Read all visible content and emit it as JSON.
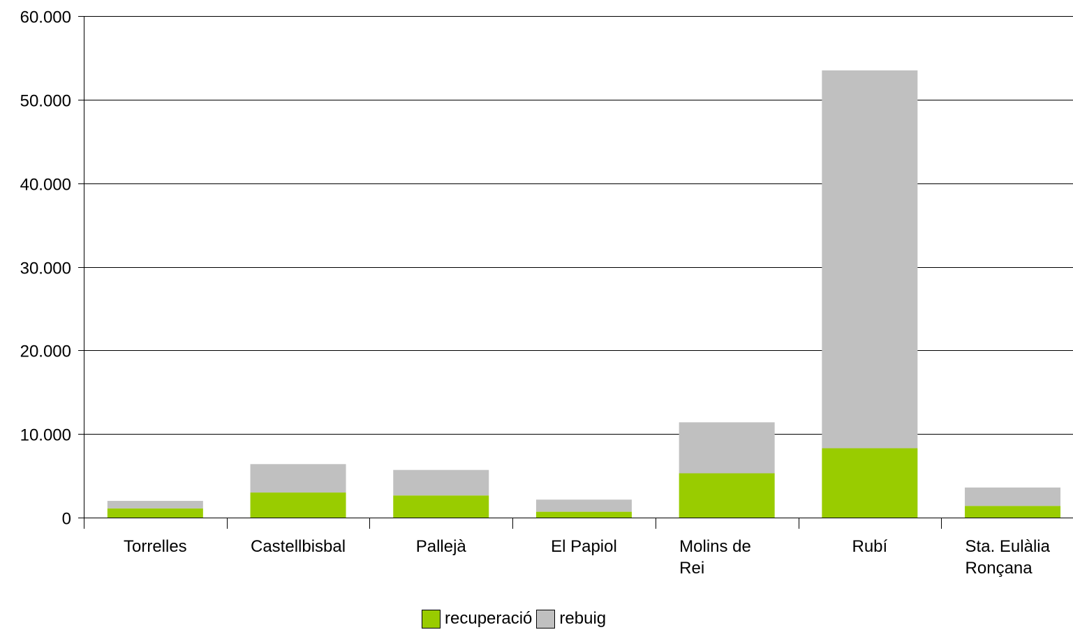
{
  "chart_data": {
    "type": "bar",
    "stacked": true,
    "title": "",
    "xlabel": "",
    "ylabel": "",
    "ylim": [
      0,
      60000
    ],
    "yticks": [
      0,
      10000,
      20000,
      30000,
      40000,
      50000,
      60000
    ],
    "ytick_labels": [
      "0",
      "10.000",
      "20.000",
      "30.000",
      "40.000",
      "50.000",
      "60.000"
    ],
    "grid": true,
    "legend_position": "bottom",
    "categories": [
      [
        "Torrelles"
      ],
      [
        "Castellbisbal"
      ],
      [
        "Pallejà"
      ],
      [
        "El Papiol"
      ],
      [
        "Molins de",
        "Rei"
      ],
      [
        "Rubí"
      ],
      [
        "Sta. Eulàlia",
        "Ronçana"
      ]
    ],
    "series": [
      {
        "name": "recuperació",
        "color": "#99cc00",
        "values": [
          1100,
          3000,
          2650,
          700,
          5300,
          8300,
          1400
        ]
      },
      {
        "name": "rebuig",
        "color": "#c0c0c0",
        "values": [
          900,
          3400,
          3050,
          1450,
          6100,
          45200,
          2200
        ]
      }
    ]
  }
}
